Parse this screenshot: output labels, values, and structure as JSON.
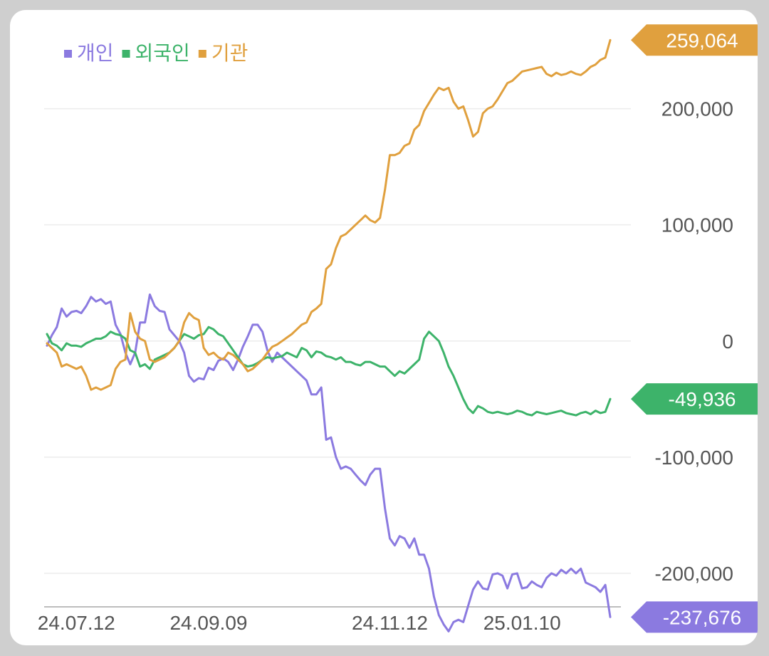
{
  "chart_data": {
    "type": "line",
    "title": "",
    "xlabel": "",
    "ylabel": "",
    "ylim": [
      -262000,
      285000
    ],
    "grid": true,
    "legend": "top-left",
    "x_ticks": [
      "24.07.12",
      "24.09.09",
      "24.11.12",
      "25.01.10"
    ],
    "y_ticks": [
      {
        "value": 200000,
        "label": "200,000"
      },
      {
        "value": 100000,
        "label": "100,000"
      },
      {
        "value": 0,
        "label": "0"
      },
      {
        "value": -100000,
        "label": "-100,000"
      },
      {
        "value": -200000,
        "label": "-200,000"
      }
    ],
    "series": [
      {
        "name": "개인",
        "color": "#8b7ae0",
        "end_label": "-237,676",
        "values": [
          -4000,
          5000,
          12000,
          28000,
          21000,
          25000,
          26000,
          24000,
          30000,
          38000,
          34000,
          36000,
          32000,
          34000,
          14000,
          6000,
          -10000,
          -20000,
          -10000,
          16000,
          16000,
          40000,
          30000,
          26000,
          25000,
          10000,
          5000,
          0,
          -10000,
          -30000,
          -35000,
          -32000,
          -33000,
          -23000,
          -25000,
          -17000,
          -15000,
          -18000,
          -25000,
          -16000,
          -5000,
          4000,
          14000,
          14000,
          8000,
          -8000,
          -18000,
          -10000,
          -14000,
          -18000,
          -22000,
          -26000,
          -30000,
          -34000,
          -46000,
          -46000,
          -40000,
          -85000,
          -83000,
          -100000,
          -110000,
          -108000,
          -110000,
          -115000,
          -120000,
          -124000,
          -115000,
          -110000,
          -110000,
          -144000,
          -170000,
          -176000,
          -168000,
          -170000,
          -178000,
          -170000,
          -184000,
          -184000,
          -196000,
          -220000,
          -236000,
          -244000,
          -250000,
          -242000,
          -240000,
          -242000,
          -228000,
          -214000,
          -207000,
          -213000,
          -214000,
          -201000,
          -200000,
          -202000,
          -213000,
          -201000,
          -200000,
          -213000,
          -212000,
          -207000,
          -210000,
          -212000,
          -204000,
          -200000,
          -202000,
          -197000,
          -200000,
          -196000,
          -200000,
          -196000,
          -208000,
          -210000,
          -212000,
          -216000,
          -210000,
          -237676
        ]
      },
      {
        "name": "외국인",
        "color": "#3db36a",
        "end_label": "-49,936",
        "values": [
          6000,
          -2000,
          -4000,
          -8000,
          -2000,
          -4000,
          -4000,
          -5000,
          -2000,
          0,
          2000,
          2000,
          4000,
          8000,
          6000,
          5000,
          2000,
          -8000,
          -10000,
          -22000,
          -20000,
          -24000,
          -16000,
          -14000,
          -12000,
          -10000,
          -6000,
          0,
          6000,
          4000,
          2000,
          5000,
          6000,
          12000,
          10000,
          6000,
          4000,
          -2000,
          -8000,
          -14000,
          -20000,
          -22000,
          -21000,
          -19000,
          -16000,
          -14000,
          -15000,
          -14000,
          -13000,
          -10000,
          -12000,
          -14000,
          -6000,
          -8000,
          -14000,
          -9000,
          -10000,
          -13000,
          -14000,
          -16000,
          -14000,
          -18000,
          -18000,
          -20000,
          -21000,
          -18000,
          -18000,
          -20000,
          -22000,
          -22000,
          -26000,
          -30000,
          -26000,
          -28000,
          -24000,
          -20000,
          -16000,
          2000,
          8000,
          4000,
          0,
          -10000,
          -22000,
          -30000,
          -40000,
          -50000,
          -58000,
          -62000,
          -56000,
          -58000,
          -61000,
          -62000,
          -61000,
          -62000,
          -63000,
          -62000,
          -60000,
          -61000,
          -63000,
          -64000,
          -61000,
          -62000,
          -63000,
          -62000,
          -61000,
          -60000,
          -62000,
          -63000,
          -64000,
          -62000,
          -61000,
          -63000,
          -60000,
          -62000,
          -61000,
          -49936
        ]
      },
      {
        "name": "기관",
        "color": "#e0a03e",
        "end_label": "259,064",
        "values": [
          -2000,
          -6000,
          -10000,
          -22000,
          -20000,
          -22000,
          -24000,
          -22000,
          -30000,
          -42000,
          -40000,
          -42000,
          -40000,
          -38000,
          -24000,
          -18000,
          -16000,
          24000,
          8000,
          2000,
          0,
          -16000,
          -18000,
          -16000,
          -14000,
          -10000,
          -6000,
          0,
          16000,
          24000,
          20000,
          18000,
          -6000,
          -12000,
          -10000,
          -14000,
          -16000,
          -10000,
          -12000,
          -16000,
          -20000,
          -26000,
          -24000,
          -20000,
          -16000,
          -10000,
          -5000,
          -3000,
          0,
          3000,
          6000,
          10000,
          14000,
          16000,
          25000,
          28000,
          32000,
          62000,
          66000,
          80000,
          90000,
          92000,
          96000,
          100000,
          104000,
          108000,
          104000,
          102000,
          106000,
          130000,
          160000,
          160000,
          162000,
          168000,
          170000,
          182000,
          186000,
          198000,
          205000,
          212000,
          218000,
          216000,
          218000,
          206000,
          200000,
          202000,
          190000,
          176000,
          180000,
          196000,
          200000,
          202000,
          208000,
          215000,
          222000,
          224000,
          228000,
          232000,
          233000,
          234000,
          235000,
          236000,
          230000,
          228000,
          231000,
          229000,
          230000,
          232000,
          230000,
          229000,
          232000,
          236000,
          238000,
          242000,
          244000,
          259064
        ]
      }
    ]
  }
}
